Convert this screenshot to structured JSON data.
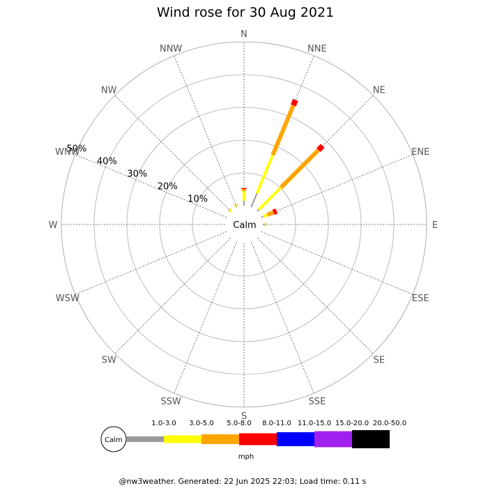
{
  "chart_data": {
    "type": "wind-rose",
    "title": "Wind rose for 30 Aug 2021",
    "directions": [
      "N",
      "NNE",
      "NE",
      "ENE",
      "E",
      "ESE",
      "SE",
      "SSE",
      "S",
      "SSW",
      "SW",
      "WSW",
      "W",
      "WNW",
      "NW",
      "NNW"
    ],
    "ring_labels": [
      "10%",
      "20%",
      "30%",
      "40%",
      "50%"
    ],
    "rings": [
      10,
      20,
      30,
      40,
      50
    ],
    "calm_label": "Calm",
    "speed_unit": "mph",
    "speed_bins": [
      {
        "label": "1.0-3.0",
        "color": "#999999"
      },
      {
        "label": "3.0-5.0",
        "color": "#ffff00"
      },
      {
        "label": "5.0-8.0",
        "color": "#ffa500"
      },
      {
        "label": "8.0-11.0",
        "color": "#ff0000"
      },
      {
        "label": "11.0-15.0",
        "color": "#0000ff"
      },
      {
        "label": "15.0-20.0",
        "color": "#a020f0"
      },
      {
        "label": "20.0-50.0",
        "color": "#000000"
      }
    ],
    "series": [
      {
        "direction": "N",
        "values": [
          1.5,
          2.9,
          0.7,
          0.3,
          0,
          0,
          0
        ]
      },
      {
        "direction": "NNE",
        "values": [
          4.6,
          12.6,
          16.4,
          1.8,
          0,
          0,
          0
        ]
      },
      {
        "direction": "NE",
        "values": [
          0.7,
          9.5,
          16.2,
          1.8,
          0,
          0,
          0
        ]
      },
      {
        "direction": "ENE",
        "values": [
          0.6,
          1.4,
          2.0,
          1.0,
          0,
          0,
          0
        ]
      },
      {
        "direction": "E",
        "values": [
          0.6,
          0.2,
          0.2,
          0,
          0,
          0,
          0
        ]
      },
      {
        "direction": "NW",
        "values": [
          0,
          0.4,
          0.2,
          0,
          0,
          0,
          0
        ]
      },
      {
        "direction": "NNW",
        "values": [
          0.3,
          0.3,
          0.2,
          0,
          0,
          0,
          0
        ]
      }
    ]
  },
  "footer": {
    "text": "@nw3weather. Generated: 22 Jun 2025 22:03; Load time: 0.11 s"
  }
}
